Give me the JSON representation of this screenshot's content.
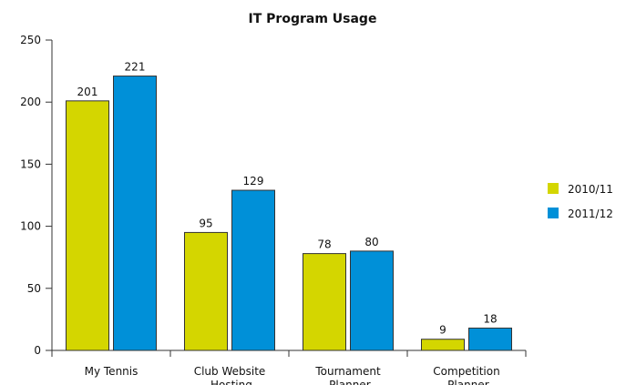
{
  "chart_data": {
    "type": "bar",
    "title": "IT Program Usage",
    "categories": [
      "My Tennis",
      "Club Website Hosting",
      "Tournament Planner",
      "Competition Planner"
    ],
    "series": [
      {
        "name": "2010/11",
        "color": "#d4d600",
        "values": [
          201,
          95,
          78,
          9
        ]
      },
      {
        "name": "2011/12",
        "color": "#0090d8",
        "values": [
          221,
          129,
          80,
          18
        ]
      }
    ],
    "ylim": [
      0,
      250
    ],
    "yticks": [
      0,
      50,
      100,
      150,
      200,
      250
    ],
    "grid": false,
    "legend": "right"
  }
}
